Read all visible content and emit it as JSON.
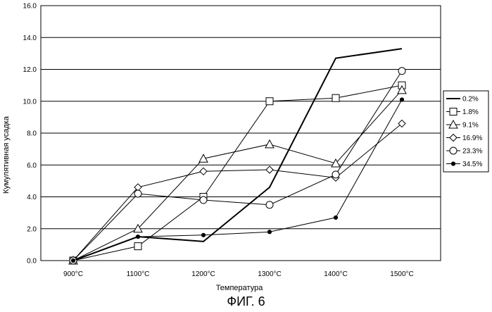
{
  "chart_data": {
    "type": "line",
    "title": "",
    "xlabel": "Температура",
    "ylabel": "Кумулятивная усадка",
    "categories": [
      "900°C",
      "1100°C",
      "1200°C",
      "1300°C",
      "1400°C",
      "1500°C"
    ],
    "ylim": [
      0,
      16
    ],
    "yticks": [
      "0.0",
      "2.0",
      "4.0",
      "6.0",
      "8.0",
      "10.0",
      "12.0",
      "14.0",
      "16.0"
    ],
    "grid": "horizontal",
    "legend_position": "right",
    "series": [
      {
        "name": "0.2%",
        "marker": "none",
        "values": [
          0,
          1.5,
          1.2,
          4.6,
          12.7,
          13.3
        ]
      },
      {
        "name": "1.8%",
        "marker": "square",
        "values": [
          0,
          0.9,
          4.0,
          10.0,
          10.2,
          11.0
        ]
      },
      {
        "name": "9.1%",
        "marker": "triangle",
        "values": [
          0,
          2.0,
          6.4,
          7.3,
          6.1,
          10.7
        ]
      },
      {
        "name": "16.9%",
        "marker": "diamond",
        "values": [
          0,
          4.6,
          5.6,
          5.7,
          5.2,
          8.6
        ]
      },
      {
        "name": "23.3%",
        "marker": "circle",
        "values": [
          0,
          4.2,
          3.8,
          3.5,
          5.4,
          11.9
        ]
      },
      {
        "name": "34.5%",
        "marker": "filled-circle",
        "values": [
          0,
          1.5,
          1.6,
          1.8,
          2.7,
          10.1
        ]
      }
    ]
  },
  "figure_caption": "ФИГ. 6"
}
